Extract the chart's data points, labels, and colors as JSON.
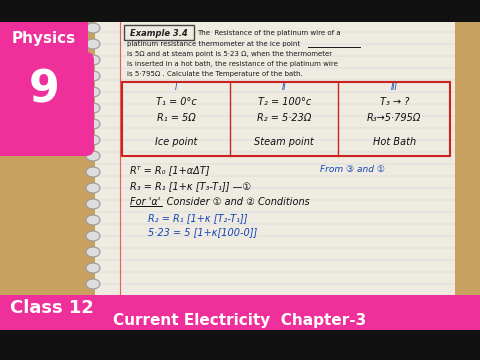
{
  "bg_color": "#000000",
  "wood_color": "#c8a060",
  "notebook_bg": "#f0ebe0",
  "notebook_line_color": "#b8cce0",
  "pink_color": "#f0309a",
  "spiral_color": "#cccccc",
  "spiral_outline": "#999999",
  "title_physics": "Physics",
  "title_num": "9",
  "bottom_class": "Class 12",
  "bottom_subject": "Current Electricity  Chapter-3",
  "example_label": "Example 3.4",
  "prob_line1": "The  Resistance of the platinum wire of a",
  "prob_line2": "platinum resistance thermometer at the ice point",
  "prob_line3": "is 5Ω and at steam point is 5·23 Ω, when the thermometer",
  "prob_line4": "is inserted in a hot bath, the resistance of the platinum wire",
  "prob_line5": "is 5·795Ω . Calculate the Temperature of the bath.",
  "ice_underline": "ice point",
  "t1": "T₁ = 0°c",
  "r1": "R₁ = 5Ω",
  "label1": "Ice point",
  "t2": "T₂ = 100°c",
  "r2": "R₂ = 5·23Ω",
  "label2": "Steam point",
  "t3": "T₃ → ?",
  "r3": "R₃→5·795Ω",
  "label3": "Hot Bath",
  "rom1": "I",
  "rom2": "II",
  "rom3": "III",
  "f1": "Rᵀ = R₀ [1+αΔT]",
  "f1note": "From ③ and ①",
  "f2": "R₃ = R₁ [1+κ [T₃-T₁]] —①",
  "f3label": "For 'α'  Consider ① and ② Conditions",
  "f4": "R₂ = R₁ [1+κ [T₂-T₁]]",
  "f5": "5·23 = 5 [1+κ[100-0]]"
}
